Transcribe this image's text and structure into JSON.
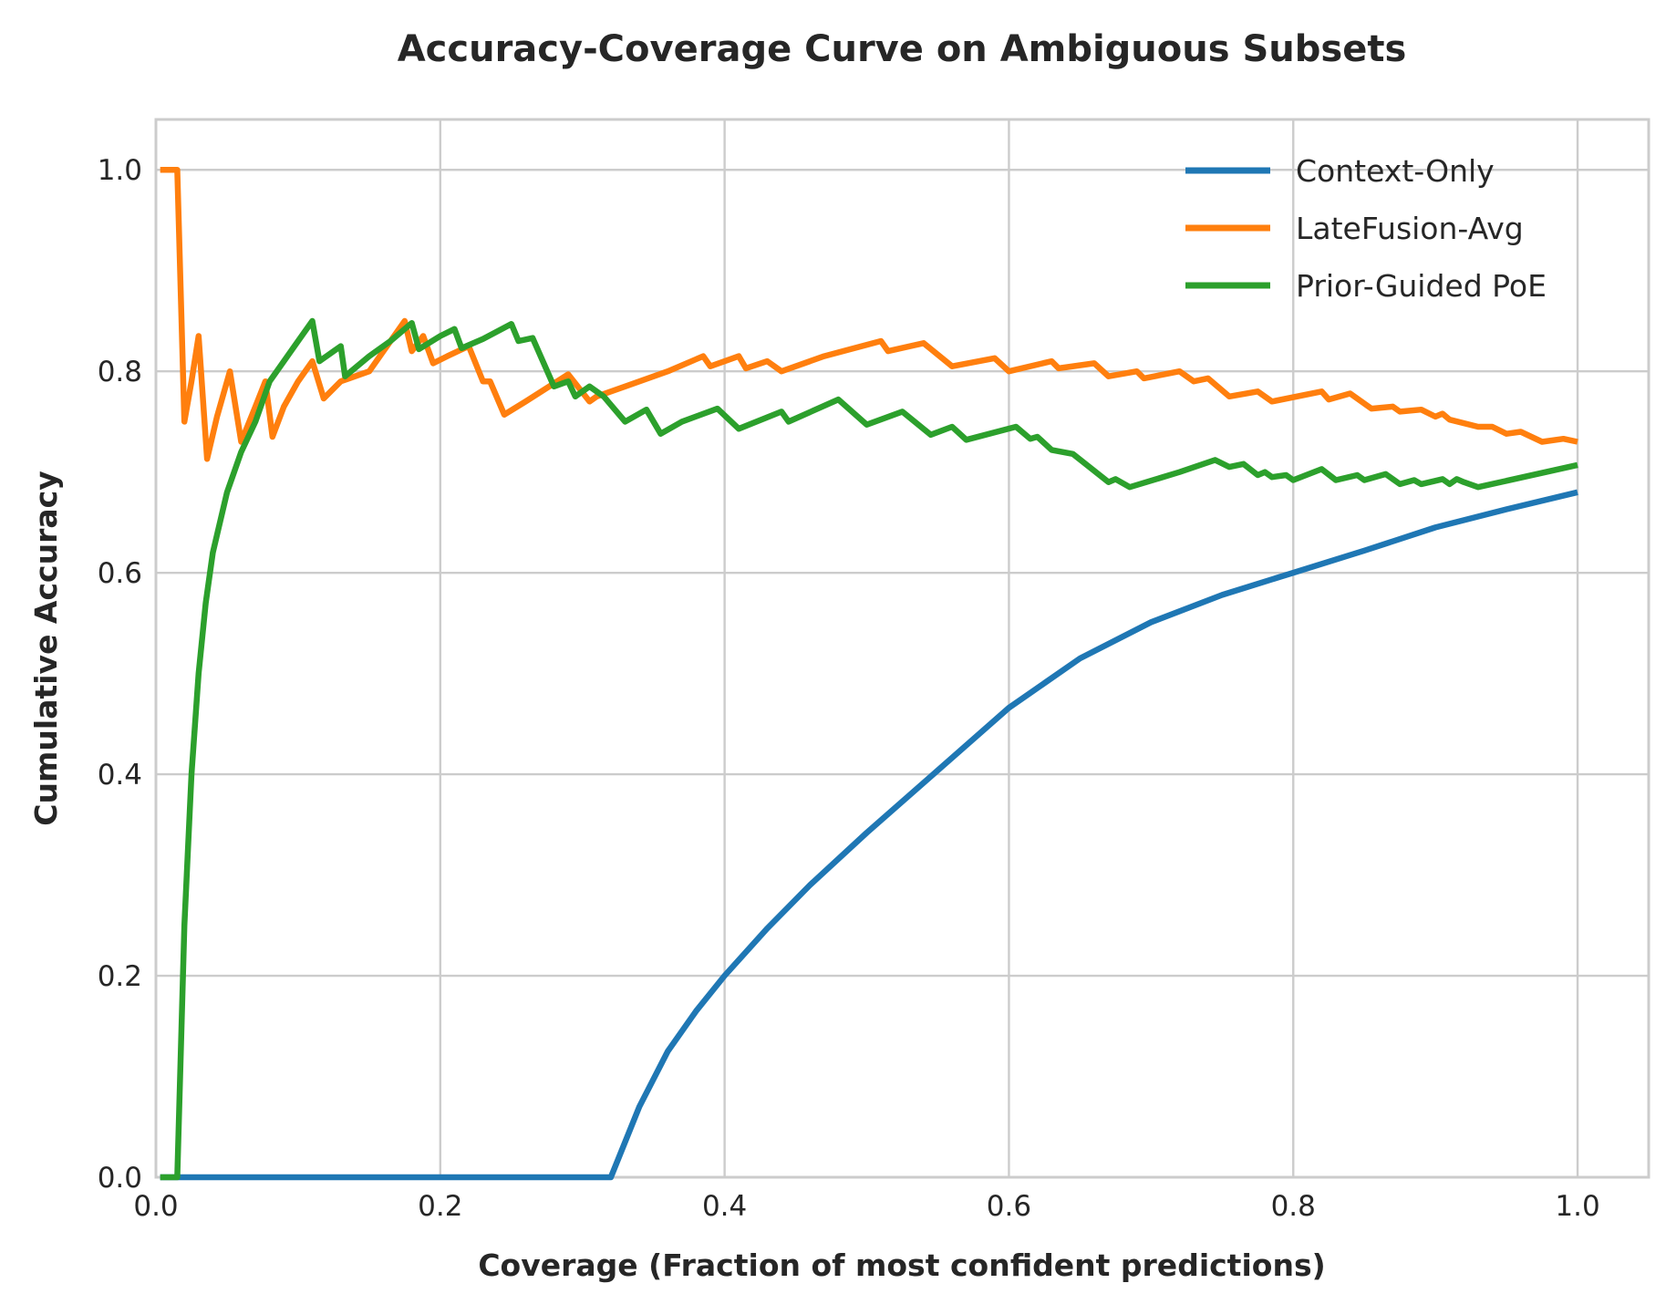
{
  "chart_data": {
    "type": "line",
    "title": "Accuracy-Coverage Curve on Ambiguous Subsets",
    "xlabel": "Coverage (Fraction of most confident predictions)",
    "ylabel": "Cumulative Accuracy",
    "xlim": [
      0.0,
      1.05
    ],
    "ylim": [
      0.0,
      1.05
    ],
    "xticks": [
      0.0,
      0.2,
      0.4,
      0.6,
      0.8,
      1.0
    ],
    "xtick_labels": [
      "0.0",
      "0.2",
      "0.4",
      "0.6",
      "0.8",
      "1.0"
    ],
    "yticks": [
      0.0,
      0.2,
      0.4,
      0.6,
      0.8,
      1.0
    ],
    "ytick_labels": [
      "0.0",
      "0.2",
      "0.4",
      "0.6",
      "0.8",
      "1.0"
    ],
    "grid": true,
    "legend_position": "top-right",
    "series": [
      {
        "name": "Context-Only",
        "color": "#1f77b4",
        "points": [
          [
            0.003,
            0.0
          ],
          [
            0.32,
            0.0
          ],
          [
            0.34,
            0.07
          ],
          [
            0.36,
            0.125
          ],
          [
            0.38,
            0.165
          ],
          [
            0.4,
            0.2
          ],
          [
            0.43,
            0.247
          ],
          [
            0.46,
            0.29
          ],
          [
            0.5,
            0.342
          ],
          [
            0.55,
            0.404
          ],
          [
            0.6,
            0.466
          ],
          [
            0.65,
            0.515
          ],
          [
            0.7,
            0.551
          ],
          [
            0.75,
            0.578
          ],
          [
            0.8,
            0.6
          ],
          [
            0.85,
            0.622
          ],
          [
            0.9,
            0.645
          ],
          [
            0.95,
            0.663
          ],
          [
            1.0,
            0.68
          ]
        ]
      },
      {
        "name": "LateFusion-Avg",
        "color": "#ff7f0e",
        "points": [
          [
            0.003,
            1.0
          ],
          [
            0.015,
            1.0
          ],
          [
            0.02,
            0.75
          ],
          [
            0.025,
            0.79
          ],
          [
            0.03,
            0.835
          ],
          [
            0.036,
            0.713
          ],
          [
            0.043,
            0.755
          ],
          [
            0.052,
            0.8
          ],
          [
            0.06,
            0.73
          ],
          [
            0.07,
            0.765
          ],
          [
            0.077,
            0.79
          ],
          [
            0.082,
            0.735
          ],
          [
            0.09,
            0.765
          ],
          [
            0.1,
            0.79
          ],
          [
            0.11,
            0.81
          ],
          [
            0.118,
            0.773
          ],
          [
            0.13,
            0.79
          ],
          [
            0.15,
            0.8
          ],
          [
            0.175,
            0.85
          ],
          [
            0.18,
            0.82
          ],
          [
            0.188,
            0.835
          ],
          [
            0.195,
            0.808
          ],
          [
            0.205,
            0.815
          ],
          [
            0.22,
            0.825
          ],
          [
            0.23,
            0.79
          ],
          [
            0.235,
            0.79
          ],
          [
            0.245,
            0.757
          ],
          [
            0.26,
            0.77
          ],
          [
            0.29,
            0.797
          ],
          [
            0.305,
            0.77
          ],
          [
            0.31,
            0.775
          ],
          [
            0.33,
            0.785
          ],
          [
            0.36,
            0.8
          ],
          [
            0.385,
            0.815
          ],
          [
            0.39,
            0.805
          ],
          [
            0.41,
            0.815
          ],
          [
            0.415,
            0.803
          ],
          [
            0.43,
            0.81
          ],
          [
            0.44,
            0.8
          ],
          [
            0.47,
            0.815
          ],
          [
            0.51,
            0.83
          ],
          [
            0.515,
            0.82
          ],
          [
            0.54,
            0.828
          ],
          [
            0.56,
            0.805
          ],
          [
            0.59,
            0.813
          ],
          [
            0.6,
            0.8
          ],
          [
            0.63,
            0.81
          ],
          [
            0.635,
            0.803
          ],
          [
            0.66,
            0.808
          ],
          [
            0.67,
            0.795
          ],
          [
            0.69,
            0.8
          ],
          [
            0.695,
            0.793
          ],
          [
            0.72,
            0.8
          ],
          [
            0.73,
            0.79
          ],
          [
            0.74,
            0.793
          ],
          [
            0.755,
            0.775
          ],
          [
            0.775,
            0.78
          ],
          [
            0.785,
            0.77
          ],
          [
            0.82,
            0.78
          ],
          [
            0.825,
            0.772
          ],
          [
            0.84,
            0.778
          ],
          [
            0.855,
            0.763
          ],
          [
            0.87,
            0.765
          ],
          [
            0.875,
            0.76
          ],
          [
            0.89,
            0.762
          ],
          [
            0.9,
            0.755
          ],
          [
            0.905,
            0.758
          ],
          [
            0.91,
            0.752
          ],
          [
            0.93,
            0.745
          ],
          [
            0.94,
            0.745
          ],
          [
            0.95,
            0.738
          ],
          [
            0.96,
            0.74
          ],
          [
            0.975,
            0.73
          ],
          [
            0.99,
            0.733
          ],
          [
            1.0,
            0.73
          ]
        ]
      },
      {
        "name": "Prior-Guided PoE",
        "color": "#2ca02c",
        "points": [
          [
            0.003,
            0.0
          ],
          [
            0.015,
            0.0
          ],
          [
            0.02,
            0.25
          ],
          [
            0.025,
            0.4
          ],
          [
            0.03,
            0.5
          ],
          [
            0.035,
            0.57
          ],
          [
            0.04,
            0.62
          ],
          [
            0.05,
            0.68
          ],
          [
            0.06,
            0.72
          ],
          [
            0.07,
            0.75
          ],
          [
            0.08,
            0.79
          ],
          [
            0.09,
            0.81
          ],
          [
            0.1,
            0.83
          ],
          [
            0.11,
            0.85
          ],
          [
            0.115,
            0.81
          ],
          [
            0.13,
            0.825
          ],
          [
            0.133,
            0.795
          ],
          [
            0.15,
            0.815
          ],
          [
            0.165,
            0.83
          ],
          [
            0.18,
            0.848
          ],
          [
            0.185,
            0.822
          ],
          [
            0.2,
            0.835
          ],
          [
            0.21,
            0.842
          ],
          [
            0.215,
            0.823
          ],
          [
            0.23,
            0.832
          ],
          [
            0.25,
            0.847
          ],
          [
            0.255,
            0.83
          ],
          [
            0.265,
            0.833
          ],
          [
            0.28,
            0.785
          ],
          [
            0.29,
            0.79
          ],
          [
            0.295,
            0.775
          ],
          [
            0.305,
            0.785
          ],
          [
            0.315,
            0.775
          ],
          [
            0.33,
            0.75
          ],
          [
            0.345,
            0.762
          ],
          [
            0.355,
            0.738
          ],
          [
            0.37,
            0.75
          ],
          [
            0.395,
            0.763
          ],
          [
            0.41,
            0.743
          ],
          [
            0.44,
            0.76
          ],
          [
            0.445,
            0.75
          ],
          [
            0.48,
            0.772
          ],
          [
            0.5,
            0.747
          ],
          [
            0.525,
            0.76
          ],
          [
            0.545,
            0.737
          ],
          [
            0.56,
            0.745
          ],
          [
            0.57,
            0.732
          ],
          [
            0.605,
            0.745
          ],
          [
            0.615,
            0.733
          ],
          [
            0.62,
            0.735
          ],
          [
            0.63,
            0.722
          ],
          [
            0.645,
            0.718
          ],
          [
            0.67,
            0.69
          ],
          [
            0.675,
            0.693
          ],
          [
            0.685,
            0.685
          ],
          [
            0.72,
            0.7
          ],
          [
            0.745,
            0.712
          ],
          [
            0.755,
            0.705
          ],
          [
            0.765,
            0.708
          ],
          [
            0.775,
            0.697
          ],
          [
            0.78,
            0.7
          ],
          [
            0.785,
            0.695
          ],
          [
            0.795,
            0.697
          ],
          [
            0.8,
            0.692
          ],
          [
            0.82,
            0.703
          ],
          [
            0.83,
            0.692
          ],
          [
            0.845,
            0.697
          ],
          [
            0.85,
            0.692
          ],
          [
            0.865,
            0.698
          ],
          [
            0.875,
            0.688
          ],
          [
            0.885,
            0.692
          ],
          [
            0.89,
            0.688
          ],
          [
            0.905,
            0.693
          ],
          [
            0.91,
            0.688
          ],
          [
            0.915,
            0.693
          ],
          [
            0.92,
            0.69
          ],
          [
            0.93,
            0.685
          ],
          [
            1.0,
            0.707
          ]
        ]
      }
    ]
  }
}
